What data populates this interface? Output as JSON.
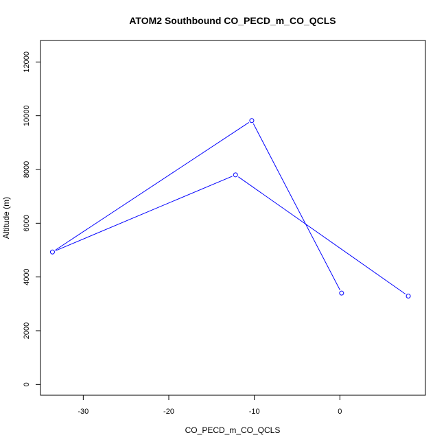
{
  "chart_data": {
    "type": "line",
    "title": "ATOM2 Southbound CO_PECD_m_CO_QCLS",
    "xlabel": "CO_PECD_m_CO_QCLS",
    "ylabel": "Altitude (m)",
    "xlim": [
      -35,
      10
    ],
    "ylim": [
      -400,
      12800
    ],
    "x_ticks": [
      -30,
      -20,
      -10,
      0
    ],
    "y_ticks": [
      0,
      2000,
      4000,
      6000,
      8000,
      10000,
      12000
    ],
    "x_tick_labels": [
      "-30",
      "-20",
      "-10",
      "0"
    ],
    "y_tick_labels": [
      "0",
      "2000",
      "4000",
      "6000",
      "8000",
      "10000",
      "12000"
    ],
    "grid": false,
    "series_color": "#0000ff",
    "series": [
      {
        "x": [
          0.2,
          -10.3,
          -33.6,
          -12.2,
          8.0
        ],
        "y": [
          3400,
          9820,
          4930,
          7800,
          3290
        ]
      }
    ]
  }
}
